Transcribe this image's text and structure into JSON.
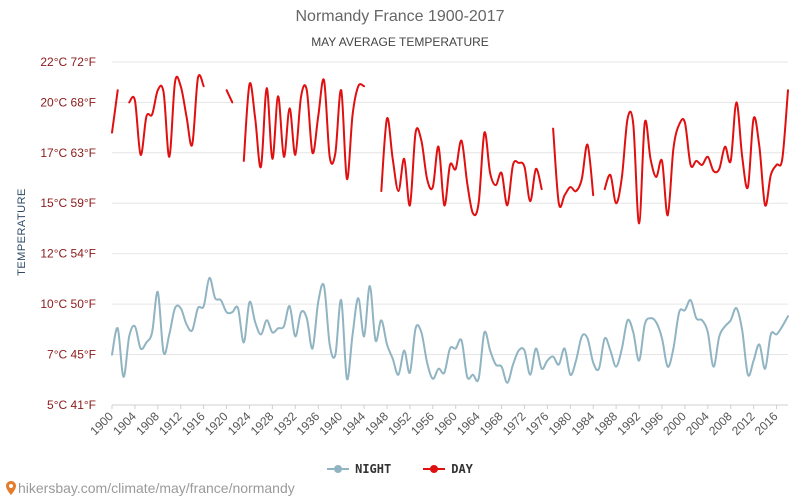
{
  "title": "Normandy France 1900-2017",
  "subtitle": "MAY AVERAGE TEMPERATURE",
  "source": "hikersbay.com/climate/may/france/normandy",
  "chart_data": {
    "type": "line",
    "xlabel": "",
    "ylabel": "TEMPERATURE",
    "xlim": [
      1900,
      2017
    ],
    "ylim": [
      5,
      22
    ],
    "y_ticks": [
      {
        "value": 5,
        "label": "5°C 41°F"
      },
      {
        "value": 7.5,
        "label": "7°C 45°F"
      },
      {
        "value": 10,
        "label": "10°C 50°F"
      },
      {
        "value": 12.5,
        "label": "12°C 54°F"
      },
      {
        "value": 15,
        "label": "15°C 59°F"
      },
      {
        "value": 17.5,
        "label": "17°C 63°F"
      },
      {
        "value": 20,
        "label": "20°C 68°F"
      },
      {
        "value": 22.5,
        "label": "22°C 72°F"
      }
    ],
    "x_ticks": [
      1900,
      1904,
      1908,
      1912,
      1916,
      1920,
      1924,
      1928,
      1932,
      1936,
      1940,
      1944,
      1948,
      1952,
      1956,
      1960,
      1964,
      1968,
      1972,
      1976,
      1980,
      1984,
      1988,
      1992,
      1996,
      2000,
      2004,
      2008,
      2012,
      2016
    ],
    "grid": true,
    "legend_position": "bottom",
    "series": [
      {
        "name": "NIGHT",
        "color": "#90b4c2",
        "points": [
          [
            1900,
            7.5
          ],
          [
            1901,
            8.8
          ],
          [
            1902,
            6.4
          ],
          [
            1903,
            8.4
          ],
          [
            1904,
            8.9
          ],
          [
            1905,
            7.8
          ],
          [
            1906,
            8.1
          ],
          [
            1907,
            8.6
          ],
          [
            1908,
            10.6
          ],
          [
            1909,
            7.6
          ],
          [
            1910,
            8.5
          ],
          [
            1911,
            9.8
          ],
          [
            1912,
            9.8
          ],
          [
            1913,
            9.0
          ],
          [
            1914,
            8.7
          ],
          [
            1915,
            9.8
          ],
          [
            1916,
            9.9
          ],
          [
            1917,
            11.3
          ],
          [
            1918,
            10.3
          ],
          [
            1919,
            10.2
          ],
          [
            1920,
            9.6
          ],
          [
            1921,
            9.6
          ],
          [
            1922,
            9.8
          ],
          [
            1923,
            8.1
          ],
          [
            1924,
            10.1
          ],
          [
            1925,
            9.1
          ],
          [
            1926,
            8.5
          ],
          [
            1927,
            9.2
          ],
          [
            1928,
            8.6
          ],
          [
            1929,
            8.8
          ],
          [
            1930,
            8.9
          ],
          [
            1931,
            9.9
          ],
          [
            1932,
            8.4
          ],
          [
            1933,
            9.6
          ],
          [
            1934,
            9.3
          ],
          [
            1935,
            7.8
          ],
          [
            1936,
            10.1
          ],
          [
            1937,
            10.9
          ],
          [
            1938,
            8.0
          ],
          [
            1939,
            7.5
          ],
          [
            1940,
            10.2
          ],
          [
            1941,
            6.3
          ],
          [
            1942,
            8.5
          ],
          [
            1943,
            10.3
          ],
          [
            1944,
            8.4
          ],
          [
            1945,
            10.9
          ],
          [
            1946,
            8.2
          ],
          [
            1947,
            9.2
          ],
          [
            1948,
            8.0
          ],
          [
            1949,
            7.3
          ],
          [
            1950,
            6.5
          ],
          [
            1951,
            7.7
          ],
          [
            1952,
            6.6
          ],
          [
            1953,
            8.8
          ],
          [
            1954,
            8.6
          ],
          [
            1955,
            7.1
          ],
          [
            1956,
            6.3
          ],
          [
            1957,
            6.8
          ],
          [
            1958,
            6.6
          ],
          [
            1959,
            7.8
          ],
          [
            1960,
            7.8
          ],
          [
            1961,
            8.2
          ],
          [
            1962,
            6.4
          ],
          [
            1963,
            6.5
          ],
          [
            1964,
            6.3
          ],
          [
            1965,
            8.6
          ],
          [
            1966,
            7.7
          ],
          [
            1967,
            7.0
          ],
          [
            1968,
            6.9
          ],
          [
            1969,
            6.1
          ],
          [
            1970,
            7.0
          ],
          [
            1971,
            7.7
          ],
          [
            1972,
            7.7
          ],
          [
            1973,
            6.5
          ],
          [
            1974,
            7.8
          ],
          [
            1975,
            6.8
          ],
          [
            1976,
            7.2
          ],
          [
            1977,
            7.4
          ],
          [
            1978,
            7.0
          ],
          [
            1979,
            7.8
          ],
          [
            1980,
            6.5
          ],
          [
            1981,
            7.2
          ],
          [
            1982,
            8.4
          ],
          [
            1983,
            8.3
          ],
          [
            1984,
            7.1
          ],
          [
            1985,
            6.8
          ],
          [
            1986,
            8.3
          ],
          [
            1987,
            7.7
          ],
          [
            1988,
            6.9
          ],
          [
            1989,
            7.8
          ],
          [
            1990,
            9.2
          ],
          [
            1991,
            8.6
          ],
          [
            1992,
            7.2
          ],
          [
            1993,
            9.0
          ],
          [
            1994,
            9.3
          ],
          [
            1995,
            9.1
          ],
          [
            1996,
            8.3
          ],
          [
            1997,
            6.9
          ],
          [
            1998,
            7.8
          ],
          [
            1999,
            9.6
          ],
          [
            2000,
            9.7
          ],
          [
            2001,
            10.2
          ],
          [
            2002,
            9.3
          ],
          [
            2003,
            9.2
          ],
          [
            2004,
            8.6
          ],
          [
            2005,
            6.9
          ],
          [
            2006,
            8.4
          ],
          [
            2007,
            8.9
          ],
          [
            2008,
            9.2
          ],
          [
            2009,
            9.8
          ],
          [
            2010,
            8.7
          ],
          [
            2011,
            6.5
          ],
          [
            2012,
            7.2
          ],
          [
            2013,
            8.0
          ],
          [
            2014,
            6.8
          ],
          [
            2015,
            8.5
          ],
          [
            2016,
            8.5
          ],
          [
            2017,
            8.9
          ],
          [
            2018,
            9.4
          ]
        ]
      },
      {
        "name": "DAY",
        "color": "#e01010",
        "points": [
          [
            1900,
            18.5
          ],
          [
            1901,
            20.6
          ],
          [
            1902,
            null
          ],
          [
            1903,
            20.0
          ],
          [
            1904,
            20.1
          ],
          [
            1905,
            17.4
          ],
          [
            1906,
            19.3
          ],
          [
            1907,
            19.4
          ],
          [
            1908,
            20.6
          ],
          [
            1909,
            20.5
          ],
          [
            1910,
            17.3
          ],
          [
            1911,
            21.0
          ],
          [
            1912,
            20.8
          ],
          [
            1913,
            19.3
          ],
          [
            1914,
            17.9
          ],
          [
            1915,
            21.2
          ],
          [
            1916,
            20.8
          ],
          [
            1917,
            null
          ],
          [
            1918,
            null
          ],
          [
            1919,
            null
          ],
          [
            1920,
            20.6
          ],
          [
            1921,
            20.0
          ],
          [
            1922,
            null
          ],
          [
            1923,
            17.1
          ],
          [
            1924,
            20.9
          ],
          [
            1925,
            19.2
          ],
          [
            1926,
            16.8
          ],
          [
            1927,
            20.7
          ],
          [
            1928,
            17.2
          ],
          [
            1929,
            20.3
          ],
          [
            1930,
            17.3
          ],
          [
            1931,
            19.7
          ],
          [
            1932,
            17.4
          ],
          [
            1933,
            20.3
          ],
          [
            1934,
            20.6
          ],
          [
            1935,
            17.5
          ],
          [
            1936,
            19.3
          ],
          [
            1937,
            21.1
          ],
          [
            1938,
            17.3
          ],
          [
            1939,
            17.5
          ],
          [
            1940,
            20.6
          ],
          [
            1941,
            16.2
          ],
          [
            1942,
            19.4
          ],
          [
            1943,
            20.8
          ],
          [
            1944,
            20.8
          ],
          [
            1945,
            null
          ],
          [
            1946,
            null
          ],
          [
            1947,
            15.6
          ],
          [
            1948,
            19.2
          ],
          [
            1949,
            17.2
          ],
          [
            1950,
            15.6
          ],
          [
            1951,
            17.2
          ],
          [
            1952,
            14.9
          ],
          [
            1953,
            18.5
          ],
          [
            1954,
            18.1
          ],
          [
            1955,
            16.2
          ],
          [
            1956,
            15.8
          ],
          [
            1957,
            17.8
          ],
          [
            1958,
            14.9
          ],
          [
            1959,
            16.9
          ],
          [
            1960,
            16.7
          ],
          [
            1961,
            18.1
          ],
          [
            1962,
            16.0
          ],
          [
            1963,
            14.5
          ],
          [
            1964,
            15.0
          ],
          [
            1965,
            18.5
          ],
          [
            1966,
            16.5
          ],
          [
            1967,
            15.9
          ],
          [
            1968,
            16.5
          ],
          [
            1969,
            14.9
          ],
          [
            1970,
            16.9
          ],
          [
            1971,
            17.0
          ],
          [
            1972,
            16.8
          ],
          [
            1973,
            15.1
          ],
          [
            1974,
            16.7
          ],
          [
            1975,
            15.7
          ],
          [
            1976,
            null
          ],
          [
            1977,
            18.7
          ],
          [
            1978,
            15.0
          ],
          [
            1979,
            15.4
          ],
          [
            1980,
            15.8
          ],
          [
            1981,
            15.6
          ],
          [
            1982,
            16.2
          ],
          [
            1983,
            17.9
          ],
          [
            1984,
            15.4
          ],
          [
            1985,
            null
          ],
          [
            1986,
            15.7
          ],
          [
            1987,
            16.4
          ],
          [
            1988,
            15.0
          ],
          [
            1989,
            16.3
          ],
          [
            1990,
            19.2
          ],
          [
            1991,
            18.9
          ],
          [
            1992,
            14.0
          ],
          [
            1993,
            19.0
          ],
          [
            1994,
            17.2
          ],
          [
            1995,
            16.3
          ],
          [
            1996,
            17.1
          ],
          [
            1997,
            14.4
          ],
          [
            1998,
            17.7
          ],
          [
            1999,
            18.9
          ],
          [
            2000,
            19.0
          ],
          [
            2001,
            16.9
          ],
          [
            2002,
            17.1
          ],
          [
            2003,
            16.9
          ],
          [
            2004,
            17.3
          ],
          [
            2005,
            16.6
          ],
          [
            2006,
            16.7
          ],
          [
            2007,
            17.8
          ],
          [
            2008,
            17.1
          ],
          [
            2009,
            20.0
          ],
          [
            2010,
            17.3
          ],
          [
            2011,
            15.8
          ],
          [
            2012,
            19.2
          ],
          [
            2013,
            17.8
          ],
          [
            2014,
            14.9
          ],
          [
            2015,
            16.4
          ],
          [
            2016,
            16.9
          ],
          [
            2017,
            17.2
          ],
          [
            2018,
            20.6
          ]
        ]
      }
    ]
  }
}
